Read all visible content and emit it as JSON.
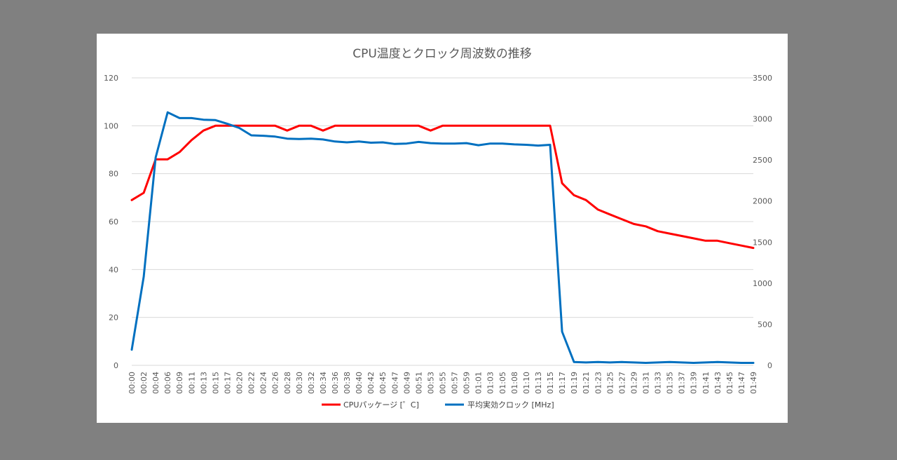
{
  "chart_data": {
    "type": "line",
    "title": "CPU温度とクロック周波数の推移",
    "x": [
      "00:00",
      "00:02",
      "00:04",
      "00:06",
      "00:09",
      "00:11",
      "00:13",
      "00:15",
      "00:17",
      "00:20",
      "00:22",
      "00:24",
      "00:26",
      "00:28",
      "00:30",
      "00:32",
      "00:34",
      "00:36",
      "00:38",
      "00:40",
      "00:42",
      "00:45",
      "00:47",
      "00:49",
      "00:51",
      "00:53",
      "00:55",
      "00:57",
      "00:59",
      "01:01",
      "01:03",
      "01:05",
      "01:08",
      "01:10",
      "01:13",
      "01:15",
      "01:17",
      "01:19",
      "01:21",
      "01:23",
      "01:25",
      "01:27",
      "01:29",
      "01:31",
      "01:33",
      "01:35",
      "01:37",
      "01:39",
      "01:41",
      "01:43",
      "01:45",
      "01:47",
      "01:49"
    ],
    "series": [
      {
        "name": "CPUパッケージ [゜C]",
        "axis": "left",
        "color": "#ff0000",
        "values": [
          69,
          72,
          86,
          86,
          89,
          94,
          98,
          100,
          100,
          100,
          100,
          100,
          100,
          98,
          100,
          100,
          98,
          100,
          100,
          100,
          100,
          100,
          100,
          100,
          100,
          98,
          100,
          100,
          100,
          100,
          100,
          100,
          100,
          100,
          100,
          100,
          76,
          71,
          69,
          65,
          63,
          61,
          59,
          58,
          56,
          55,
          54,
          53,
          52,
          52,
          51,
          50,
          49
        ]
      },
      {
        "name": "平均実効クロック [MHz]",
        "axis": "right",
        "color": "#0070c0",
        "values": [
          190,
          1080,
          2530,
          3080,
          3010,
          3010,
          2990,
          2985,
          2940,
          2890,
          2800,
          2795,
          2785,
          2760,
          2755,
          2760,
          2750,
          2725,
          2715,
          2725,
          2710,
          2715,
          2695,
          2700,
          2720,
          2705,
          2700,
          2700,
          2705,
          2680,
          2700,
          2700,
          2690,
          2685,
          2675,
          2685,
          410,
          40,
          35,
          40,
          35,
          40,
          35,
          30,
          35,
          40,
          35,
          30,
          35,
          40,
          35,
          30,
          30
        ]
      }
    ],
    "ylim_left": [
      0,
      120
    ],
    "yticks_left": [
      "0",
      "20",
      "40",
      "60",
      "80",
      "100",
      "120"
    ],
    "ylim_right": [
      0,
      3500
    ],
    "yticks_right": [
      "0",
      "500",
      "1000",
      "1500",
      "2000",
      "2500",
      "3000",
      "3500"
    ],
    "grid": true,
    "legend_position": "bottom"
  }
}
